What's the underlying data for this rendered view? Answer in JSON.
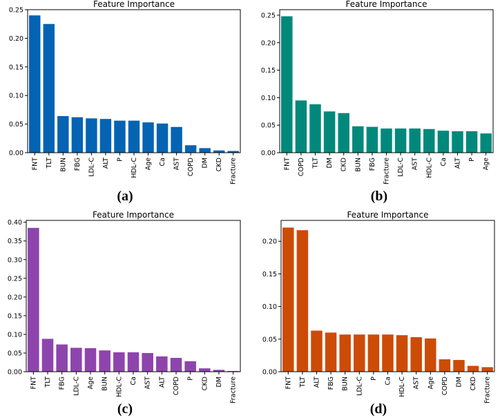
{
  "chart_data": [
    {
      "type": "bar",
      "panel_label": "(a)",
      "title": "Feature Importance",
      "color": "#0563B4",
      "categories": [
        "FNT",
        "TLT",
        "BUN",
        "FBG",
        "LDL-C",
        "ALT",
        "P",
        "HDL-C",
        "Age",
        "Ca",
        "AST",
        "COPD",
        "DM",
        "CKD",
        "Fracture"
      ],
      "values": [
        0.24,
        0.225,
        0.064,
        0.062,
        0.06,
        0.059,
        0.056,
        0.056,
        0.053,
        0.051,
        0.045,
        0.013,
        0.008,
        0.004,
        0.003
      ],
      "ylim": [
        0,
        0.25
      ],
      "yticks": [
        0.0,
        0.05,
        0.1,
        0.15,
        0.2,
        0.25
      ],
      "ytick_labels": [
        "0.00",
        "0.05",
        "0.10",
        "0.15",
        "0.20",
        "0.25"
      ]
    },
    {
      "type": "bar",
      "panel_label": "(b)",
      "title": "Feature Importance",
      "color": "#00897B",
      "categories": [
        "FNT",
        "COPD",
        "TLT",
        "DM",
        "CKD",
        "BUN",
        "FBG",
        "Fracture",
        "LDL-C",
        "AST",
        "HDL-C",
        "Ca",
        "ALT",
        "P",
        "Age"
      ],
      "values": [
        0.248,
        0.095,
        0.088,
        0.075,
        0.072,
        0.048,
        0.047,
        0.044,
        0.044,
        0.044,
        0.043,
        0.04,
        0.039,
        0.039,
        0.035
      ],
      "ylim": [
        0,
        0.26
      ],
      "yticks": [
        0.0,
        0.05,
        0.1,
        0.15,
        0.2,
        0.25
      ],
      "ytick_labels": [
        "0.00",
        "0.05",
        "0.10",
        "0.15",
        "0.20",
        "0.25"
      ]
    },
    {
      "type": "bar",
      "panel_label": "(c)",
      "title": "Feature Importance",
      "color": "#8E44AD",
      "categories": [
        "FNT",
        "TLT",
        "FBG",
        "LDL-C",
        "Age",
        "BUN",
        "HDL-C",
        "Ca",
        "AST",
        "ALT",
        "COPD",
        "P",
        "CKD",
        "DM",
        "Fracture"
      ],
      "values": [
        0.385,
        0.088,
        0.073,
        0.064,
        0.063,
        0.057,
        0.052,
        0.052,
        0.05,
        0.041,
        0.037,
        0.028,
        0.009,
        0.005,
        0.002
      ],
      "ylim": [
        0,
        0.405
      ],
      "yticks": [
        0.0,
        0.05,
        0.1,
        0.15,
        0.2,
        0.25,
        0.3,
        0.35,
        0.4
      ],
      "ytick_labels": [
        "0.00",
        "0.05",
        "0.10",
        "0.15",
        "0.20",
        "0.25",
        "0.30",
        "0.35",
        "0.40"
      ]
    },
    {
      "type": "bar",
      "panel_label": "(d)",
      "title": "Feature Importance",
      "color": "#CC4B06",
      "categories": [
        "FNT",
        "TLT",
        "ALT",
        "FBG",
        "BUN",
        "LDL-C",
        "P",
        "Ca",
        "HDL-C",
        "AST",
        "Age",
        "COPD",
        "DM",
        "CKD",
        "Fracture"
      ],
      "values": [
        0.221,
        0.217,
        0.063,
        0.06,
        0.057,
        0.057,
        0.057,
        0.057,
        0.056,
        0.053,
        0.051,
        0.019,
        0.018,
        0.009,
        0.007
      ],
      "ylim": [
        0,
        0.232
      ],
      "yticks": [
        0.0,
        0.05,
        0.1,
        0.15,
        0.2
      ],
      "ytick_labels": [
        "0.00",
        "0.05",
        "0.10",
        "0.15",
        "0.20"
      ]
    }
  ]
}
